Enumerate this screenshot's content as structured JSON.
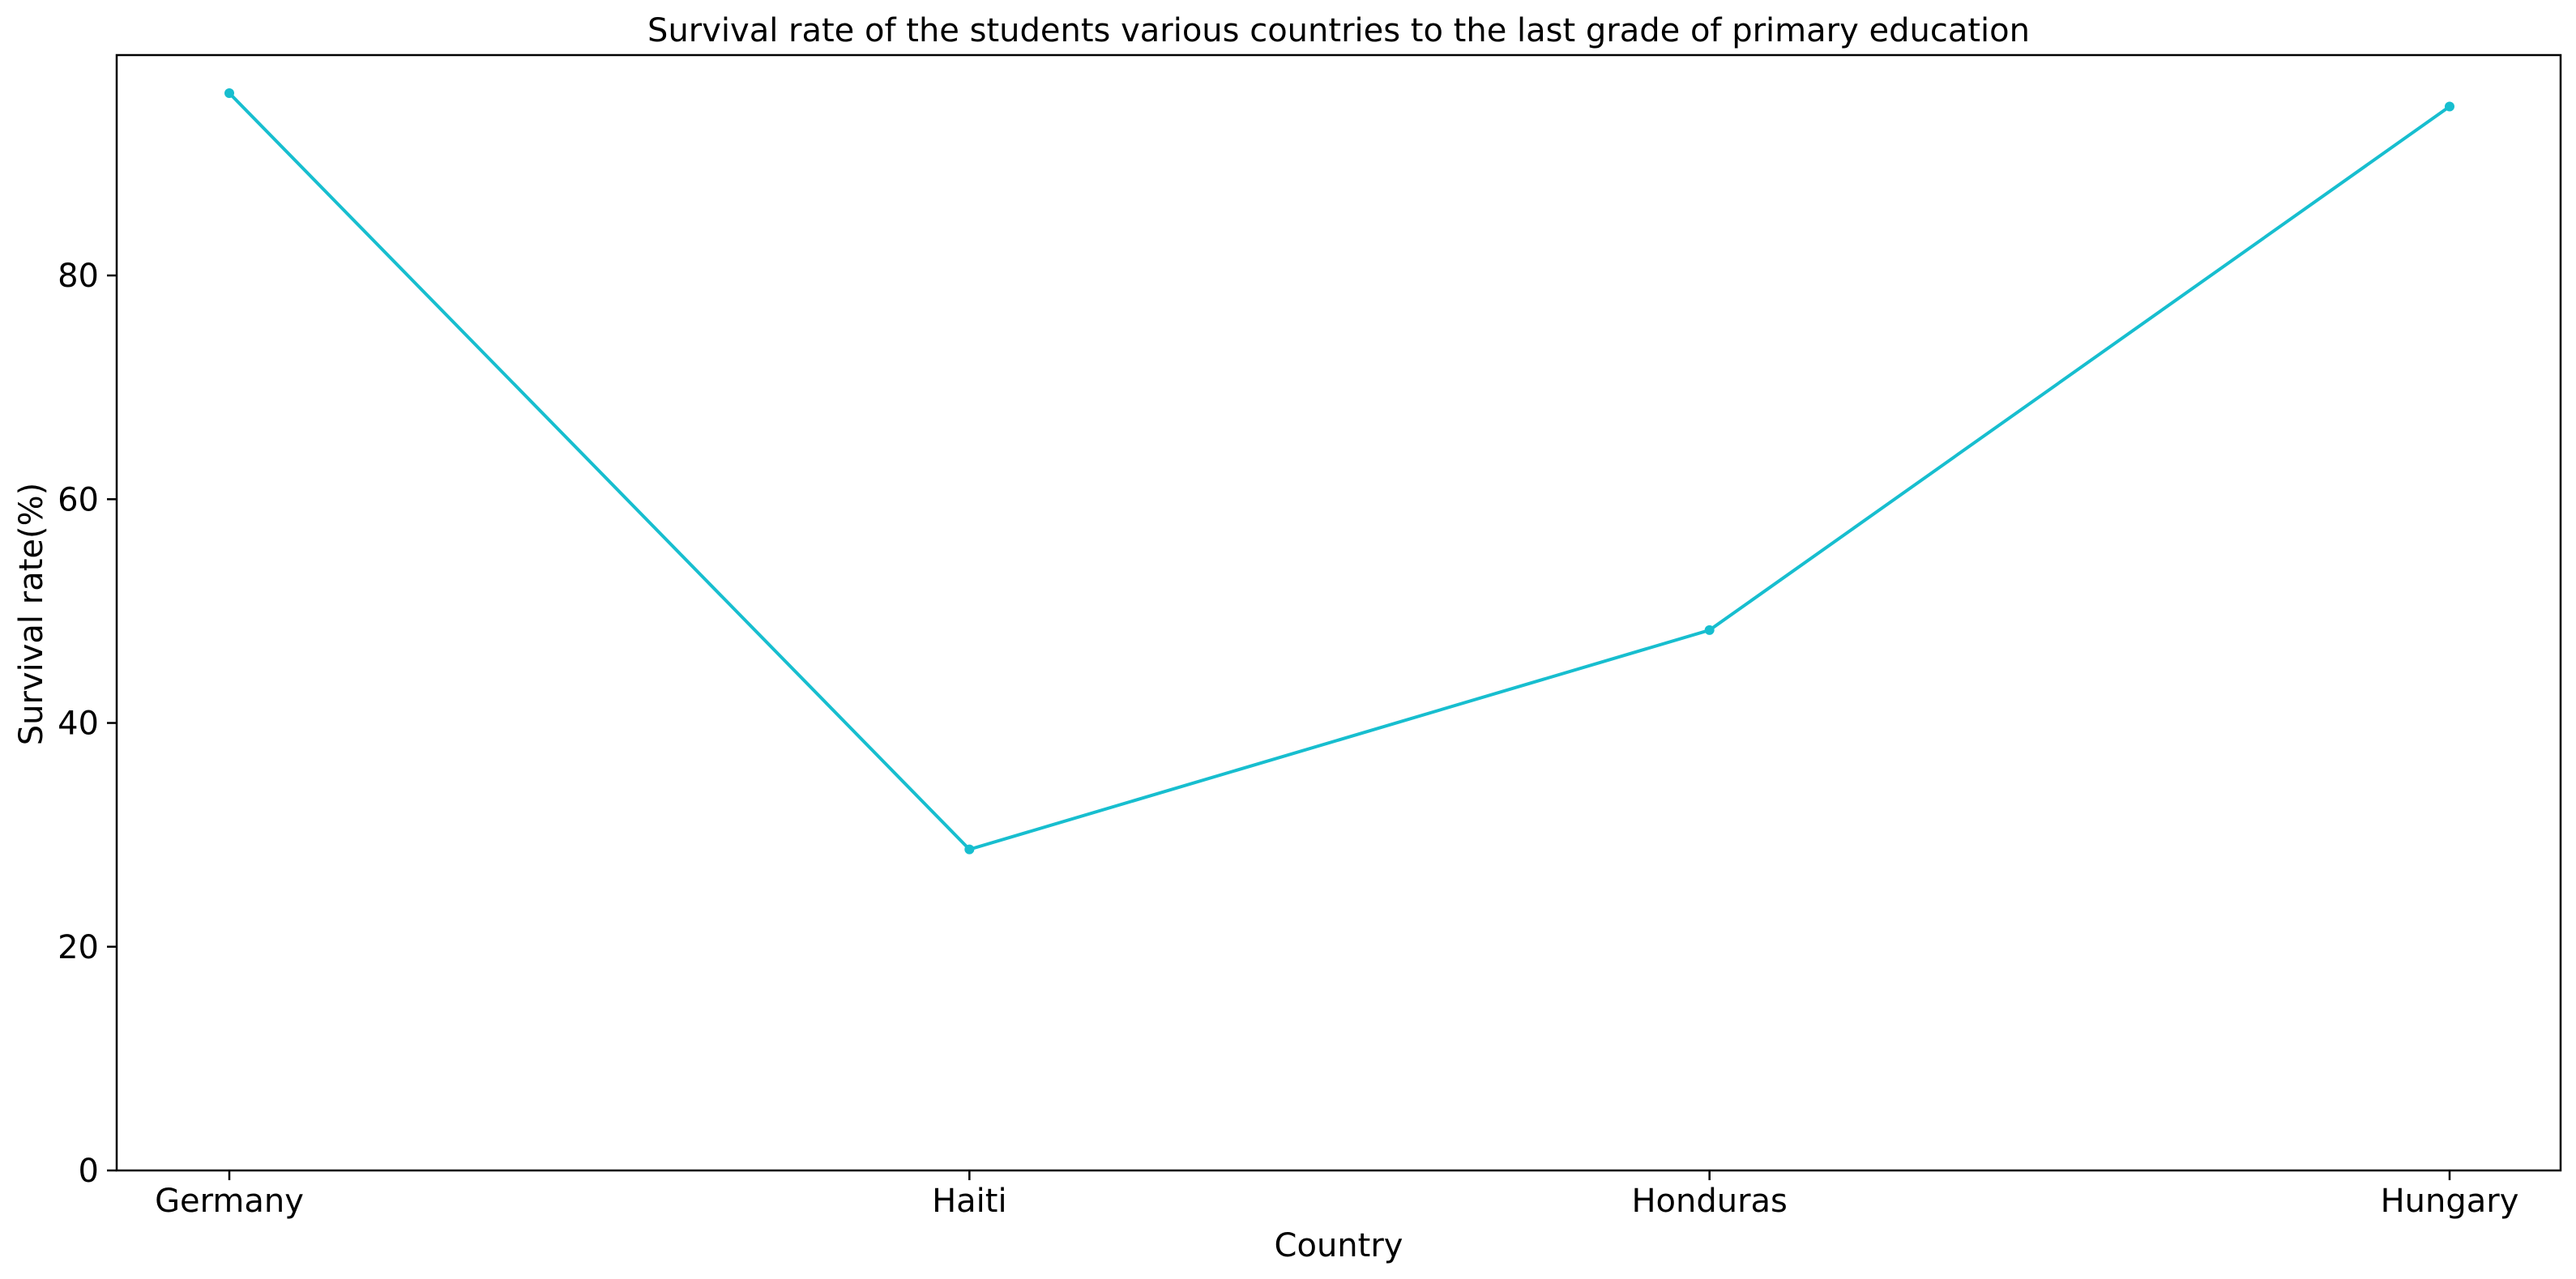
{
  "chart_data": {
    "type": "line",
    "title": "Survival rate of the students various countries to the last grade of primary education",
    "xlabel": "Country",
    "ylabel": "Survival rate(%)",
    "categories": [
      "Germany",
      "Haiti",
      "Honduras",
      "Hungary"
    ],
    "series": [
      {
        "values": [
          96.3,
          28.7,
          48.3,
          95.1
        ]
      }
    ],
    "ylim": [
      0,
      99.7
    ],
    "yticks": [
      0,
      20,
      40,
      60,
      80
    ],
    "grid": false,
    "marker": "dot",
    "colors": {
      "line": "#17becf",
      "axis": "#000000"
    }
  }
}
